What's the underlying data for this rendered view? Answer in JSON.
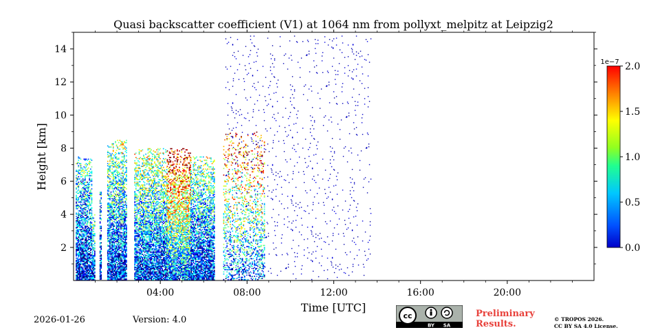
{
  "chart_data": {
    "type": "heatmap",
    "title": "Quasi backscatter coefficient (V1) at 1064 nm from pollyxt_melpitz at Leipzig2",
    "xlabel": "Time [UTC]",
    "ylabel": "Height [km]",
    "xlim_hours": [
      0,
      24
    ],
    "ylim_km": [
      0,
      15
    ],
    "x_ticks": [
      {
        "value": 4,
        "label": "04:00"
      },
      {
        "value": 8,
        "label": "08:00"
      },
      {
        "value": 12,
        "label": "12:00"
      },
      {
        "value": 16,
        "label": "16:00"
      },
      {
        "value": 20,
        "label": "20:00"
      }
    ],
    "y_ticks": [
      {
        "value": 2,
        "label": "2"
      },
      {
        "value": 4,
        "label": "4"
      },
      {
        "value": 6,
        "label": "6"
      },
      {
        "value": 8,
        "label": "8"
      },
      {
        "value": 10,
        "label": "10"
      },
      {
        "value": 12,
        "label": "12"
      },
      {
        "value": 14,
        "label": "14"
      }
    ],
    "colorbar": {
      "range": [
        0.0,
        2.0
      ],
      "exponent_label": "1e−7",
      "ticks": [
        {
          "value": 0.0,
          "label": "0.0"
        },
        {
          "value": 0.5,
          "label": "0.5"
        },
        {
          "value": 1.0,
          "label": "1.0"
        },
        {
          "value": 1.5,
          "label": "1.5"
        },
        {
          "value": 2.0,
          "label": "2.0"
        }
      ],
      "colormap": "jet"
    },
    "segments": [
      {
        "t_start": 0.1,
        "t_end": 0.85,
        "h_top": 7.5,
        "intensity": 0.35
      },
      {
        "t_start": 0.85,
        "t_end": 1.0,
        "h_top": 4.0,
        "intensity": 0.4
      },
      {
        "t_start": 1.2,
        "t_end": 1.3,
        "h_top": 5.5,
        "intensity": 0.3
      },
      {
        "t_start": 1.55,
        "t_end": 2.45,
        "h_top": 8.5,
        "intensity": 0.45
      },
      {
        "t_start": 2.8,
        "t_end": 4.3,
        "h_top": 8.0,
        "intensity": 0.5
      },
      {
        "t_start": 4.3,
        "t_end": 5.4,
        "h_top": 8.0,
        "intensity": 0.8
      },
      {
        "t_start": 5.4,
        "t_end": 6.5,
        "h_top": 7.5,
        "intensity": 0.45
      },
      {
        "t_start": 6.9,
        "t_end": 8.8,
        "h_top": 9.0,
        "intensity": 0.75
      },
      {
        "t_start": 7.0,
        "t_end": 13.7,
        "h_top": 14.8,
        "intensity": 0.0
      }
    ]
  },
  "footer": {
    "date": "2026-01-26",
    "version": "Version: 4.0",
    "preliminary_line1": "Preliminary",
    "preliminary_line2": "Results.",
    "copyright_line1": "© TROPOS 2026.",
    "copyright_line2": "CC BY SA 4.0 License.",
    "license_badge": {
      "cc": "cc",
      "by": "BY",
      "sa": "SA"
    }
  }
}
